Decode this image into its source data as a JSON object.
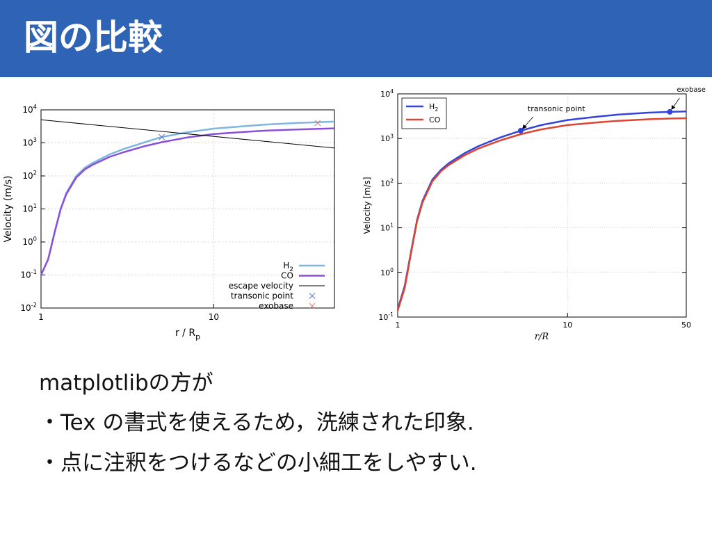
{
  "slide": {
    "title": "図の比較",
    "header_color": "#2f63b5"
  },
  "body": {
    "lines": [
      "matplotlibの方が",
      "・Tex の書式を使えるため，洗練された印象.",
      "・点に注釈をつけるなどの小細工をしやすい."
    ]
  },
  "chart_data": [
    {
      "type": "line",
      "title": "",
      "xlabel": "r / R_p",
      "ylabel": "Velocity (m/s)",
      "xscale": "log",
      "yscale": "log",
      "xlim": [
        1,
        50
      ],
      "ylim": [
        0.01,
        10000
      ],
      "x_ticks": [
        "1",
        "10"
      ],
      "y_ticks": [
        "10^-2",
        "10^-1",
        "10^0",
        "10^1",
        "10^2",
        "10^3",
        "10^4"
      ],
      "grid": true,
      "legend_position": "bottom-right",
      "series": [
        {
          "name": "H2",
          "color": "#7fb6e0",
          "kind": "line",
          "x": [
            1,
            1.1,
            1.2,
            1.3,
            1.4,
            1.6,
            1.8,
            2,
            2.5,
            3,
            4,
            5,
            7,
            10,
            15,
            20,
            30,
            50
          ],
          "values": [
            0.1,
            0.3,
            2,
            10,
            30,
            100,
            180,
            250,
            450,
            650,
            1050,
            1500,
            2100,
            2700,
            3200,
            3600,
            4000,
            4400
          ]
        },
        {
          "name": "CO",
          "color": "#8a4fd8",
          "kind": "line",
          "x": [
            1,
            1.1,
            1.2,
            1.3,
            1.4,
            1.6,
            1.8,
            2,
            2.5,
            3,
            4,
            5,
            7,
            10,
            15,
            20,
            30,
            50
          ],
          "values": [
            0.1,
            0.3,
            2,
            10,
            28,
            90,
            160,
            220,
            380,
            520,
            800,
            1050,
            1450,
            1850,
            2150,
            2350,
            2550,
            2750
          ]
        },
        {
          "name": "escape velocity",
          "color": "#000000",
          "kind": "line",
          "x": [
            1,
            50
          ],
          "values": [
            5000,
            700
          ]
        },
        {
          "name": "transonic point",
          "color": "#5a78d6",
          "kind": "marker",
          "x": [
            5
          ],
          "values": [
            1500
          ]
        },
        {
          "name": "exobase",
          "color": "#e07878",
          "kind": "marker",
          "x": [
            40
          ],
          "values": [
            4000
          ]
        }
      ]
    },
    {
      "type": "line",
      "title": "",
      "xlabel": "r/R",
      "ylabel": "Velocity [m/s]",
      "xscale": "log",
      "yscale": "log",
      "xlim": [
        1,
        50
      ],
      "ylim": [
        0.1,
        10000
      ],
      "x_ticks": [
        "1",
        "10",
        "50"
      ],
      "y_ticks": [
        "10^-1",
        "10^0",
        "10^1",
        "10^2",
        "10^3",
        "10^4"
      ],
      "grid": true,
      "legend_position": "top-left",
      "series": [
        {
          "name": "H2",
          "color": "#3344dd",
          "x": [
            1,
            1.1,
            1.2,
            1.3,
            1.4,
            1.6,
            1.8,
            2,
            2.5,
            3,
            4,
            5.3,
            7,
            10,
            15,
            20,
            30,
            40,
            50
          ],
          "values": [
            0.15,
            0.5,
            3,
            15,
            40,
            120,
            200,
            280,
            480,
            680,
            1050,
            1500,
            2000,
            2600,
            3100,
            3450,
            3800,
            3950,
            4050
          ]
        },
        {
          "name": "CO",
          "color": "#dd4433",
          "x": [
            1,
            1.1,
            1.2,
            1.3,
            1.4,
            1.6,
            1.8,
            2,
            2.5,
            3,
            4,
            5.3,
            7,
            10,
            15,
            20,
            30,
            40,
            50
          ],
          "values": [
            0.14,
            0.45,
            2.8,
            14,
            37,
            110,
            185,
            255,
            430,
            600,
            900,
            1250,
            1600,
            2000,
            2300,
            2500,
            2700,
            2800,
            2850
          ]
        }
      ],
      "annotations": [
        {
          "text": "transonic point",
          "x": 5.3,
          "y": 1500
        },
        {
          "text": "exobase",
          "x": 40,
          "y": 3950
        }
      ]
    }
  ]
}
